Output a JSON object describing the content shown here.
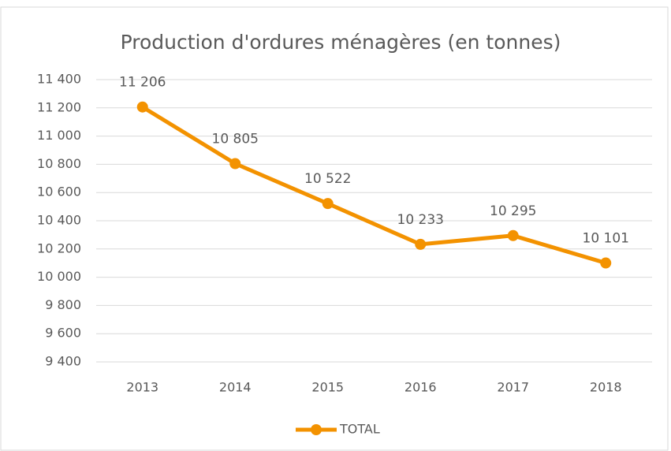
{
  "chart_data": {
    "type": "line",
    "title": "Production d'ordures ménagères (en tonnes)",
    "categories": [
      "2013",
      "2014",
      "2015",
      "2016",
      "2017",
      "2018"
    ],
    "series": [
      {
        "name": "TOTAL",
        "color": "#f39200",
        "values": [
          11206,
          10805,
          10522,
          10233,
          10295,
          10101
        ],
        "value_labels": [
          "11 206",
          "10 805",
          "10 522",
          "10 233",
          "10 295",
          "10 101"
        ]
      }
    ],
    "ylim": [
      9400,
      11400
    ],
    "yticks": [
      {
        "value": 9400,
        "label": "9 400"
      },
      {
        "value": 9600,
        "label": "9 600"
      },
      {
        "value": 9800,
        "label": "9 800"
      },
      {
        "value": 10000,
        "label": "10 000"
      },
      {
        "value": 10200,
        "label": "10 200"
      },
      {
        "value": 10400,
        "label": "10 400"
      },
      {
        "value": 10600,
        "label": "10 600"
      },
      {
        "value": 10800,
        "label": "10 800"
      },
      {
        "value": 11000,
        "label": "11 000"
      },
      {
        "value": 11200,
        "label": "11 200"
      },
      {
        "value": 11400,
        "label": "11 400"
      }
    ],
    "grid": true,
    "legend": "bottom"
  }
}
